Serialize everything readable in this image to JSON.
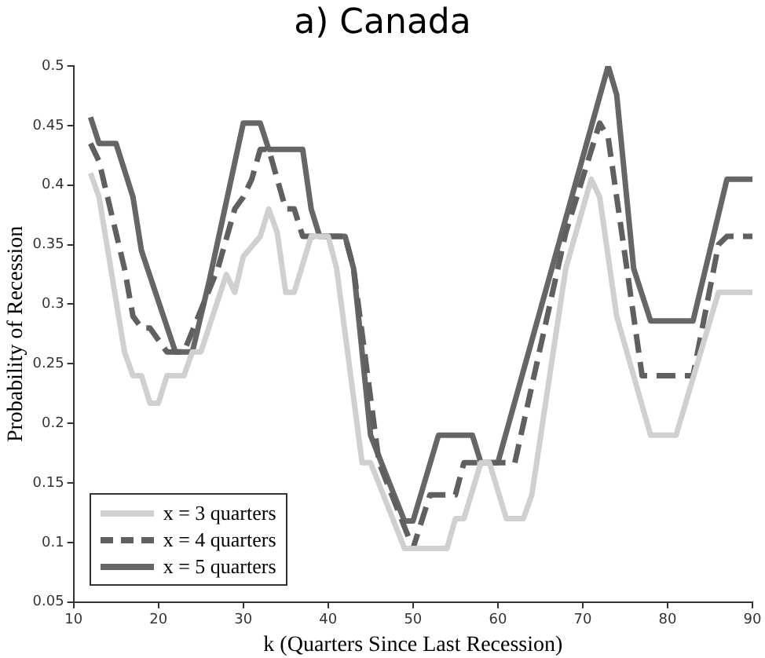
{
  "chart_data": {
    "type": "line",
    "title": "a) Canada",
    "xlabel": "k (Quarters Since Last Recession)",
    "ylabel": "Probability of Recession",
    "xlim": [
      10,
      90
    ],
    "xticks": [
      10,
      20,
      30,
      40,
      50,
      60,
      70,
      80,
      90
    ],
    "ylim": [
      0.05,
      0.5
    ],
    "yticks": [
      0.05,
      0.1,
      0.15,
      0.2,
      0.25,
      0.3,
      0.35,
      0.4,
      0.45,
      0.5
    ],
    "grid": false,
    "legend": "bottom left",
    "marker": "none",
    "series": [
      {
        "name": "x = 3 quarters",
        "color": "#d0d0d0",
        "line_style": "solid",
        "x": [
          12,
          13,
          16,
          17,
          18,
          19,
          20,
          21,
          23,
          24,
          25,
          28,
          29,
          30,
          32,
          33,
          34,
          35,
          36,
          38,
          40,
          41,
          44,
          45,
          49,
          54,
          55,
          56,
          58,
          59,
          61,
          63,
          64,
          68,
          71,
          72,
          74,
          78,
          81,
          86,
          90
        ],
        "values": [
          0.41,
          0.39,
          0.26,
          0.24,
          0.24,
          0.217,
          0.217,
          0.24,
          0.24,
          0.26,
          0.26,
          0.325,
          0.31,
          0.34,
          0.357,
          0.38,
          0.36,
          0.31,
          0.31,
          0.357,
          0.357,
          0.33,
          0.167,
          0.167,
          0.095,
          0.095,
          0.12,
          0.12,
          0.167,
          0.167,
          0.12,
          0.12,
          0.14,
          0.33,
          0.405,
          0.39,
          0.29,
          0.19,
          0.19,
          0.31,
          0.31
        ]
      },
      {
        "name": "x = 4 quarters",
        "color": "#606060",
        "line_style": "dashed",
        "x": [
          12,
          13,
          16,
          17,
          18,
          19,
          21,
          23,
          27,
          29,
          30,
          31,
          32,
          33,
          35,
          36,
          37,
          42,
          43,
          46,
          50,
          52,
          55,
          56,
          62,
          68,
          72,
          73,
          77,
          83,
          86,
          87,
          90
        ],
        "values": [
          0.435,
          0.42,
          0.33,
          0.29,
          0.28,
          0.28,
          0.26,
          0.26,
          0.33,
          0.38,
          0.39,
          0.405,
          0.43,
          0.43,
          0.38,
          0.38,
          0.357,
          0.357,
          0.33,
          0.167,
          0.095,
          0.14,
          0.14,
          0.167,
          0.167,
          0.36,
          0.452,
          0.44,
          0.24,
          0.24,
          0.35,
          0.357,
          0.357
        ]
      },
      {
        "name": "x = 5 quarters",
        "color": "#666666",
        "line_style": "solid",
        "x": [
          12,
          13,
          15,
          17,
          18,
          22,
          24,
          26,
          30,
          32,
          33,
          37,
          38,
          39,
          42,
          43,
          45,
          49,
          50,
          53,
          57,
          58,
          60,
          73,
          74,
          76,
          78,
          83,
          87,
          90
        ],
        "values": [
          0.457,
          0.435,
          0.435,
          0.39,
          0.345,
          0.26,
          0.26,
          0.32,
          0.452,
          0.452,
          0.43,
          0.43,
          0.38,
          0.357,
          0.357,
          0.33,
          0.19,
          0.118,
          0.118,
          0.19,
          0.19,
          0.167,
          0.167,
          0.5,
          0.476,
          0.33,
          0.286,
          0.286,
          0.405,
          0.405
        ]
      }
    ]
  }
}
